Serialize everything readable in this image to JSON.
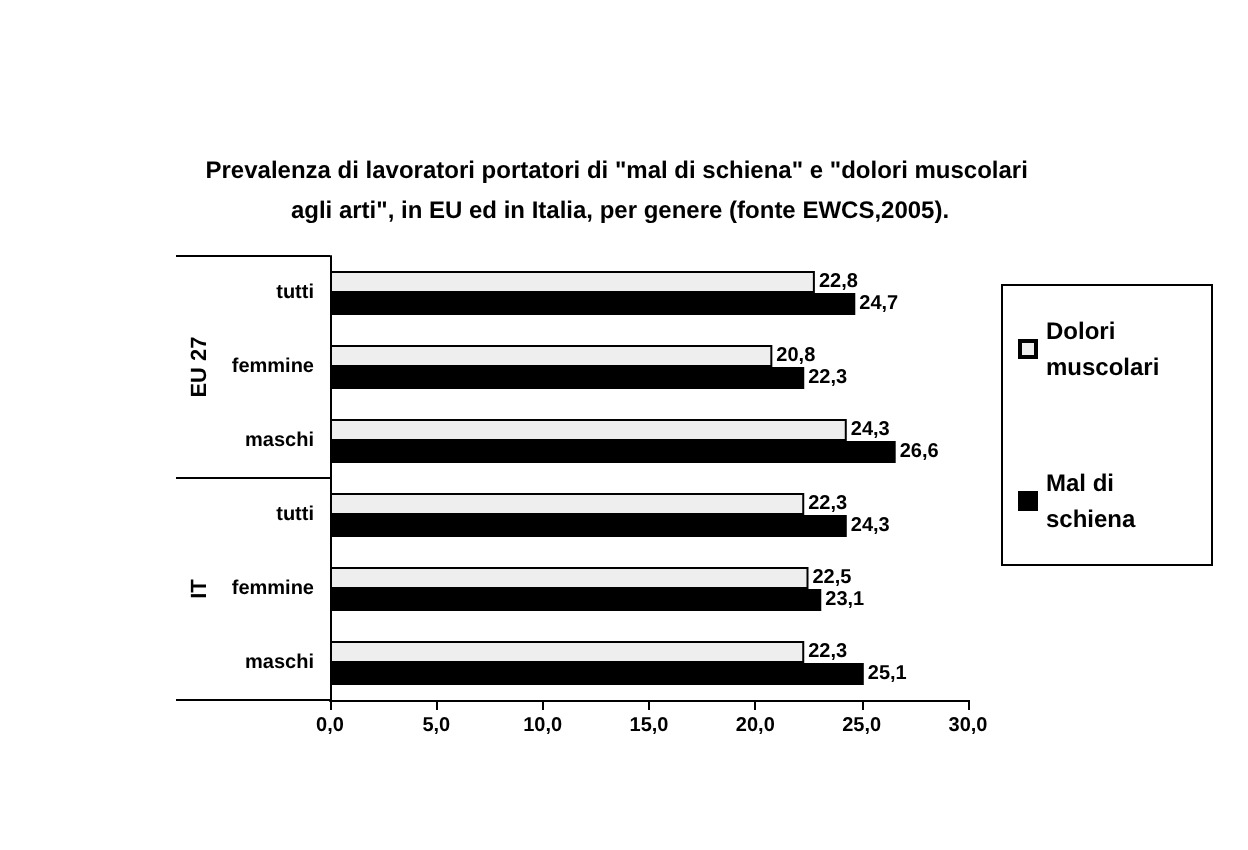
{
  "chart_data": {
    "type": "bar",
    "orientation": "horizontal",
    "title": "Prevalenza di lavoratori portatori di \"mal di schiena\" e \"dolori muscolari agli arti\", in EU ed in Italia, per genere (fonte EWCS,2005).",
    "categories": [
      "tutti",
      "femmine",
      "maschi",
      "tutti",
      "femmine",
      "maschi"
    ],
    "annotations": [
      "EU 27",
      "IT"
    ],
    "series": [
      {
        "name": "Dolori muscolari",
        "color": "#eeeeee",
        "values": [
          22.8,
          20.8,
          24.3,
          22.3,
          22.5,
          22.3
        ],
        "value_labels": [
          "22,8",
          "20,8",
          "24,3",
          "22,3",
          "22,5",
          "22,3"
        ]
      },
      {
        "name": "Mal di schiena",
        "color": "#000000",
        "values": [
          24.7,
          22.3,
          26.6,
          24.3,
          23.1,
          25.1
        ],
        "value_labels": [
          "24,7",
          "22,3",
          "26,6",
          "24,3",
          "23,1",
          "25,1"
        ]
      }
    ],
    "xlim": [
      0,
      30
    ],
    "xticks": [
      {
        "value": 0,
        "label": "0,0"
      },
      {
        "value": 5,
        "label": "5,0"
      },
      {
        "value": 10,
        "label": "10,0"
      },
      {
        "value": 15,
        "label": "15,0"
      },
      {
        "value": 20,
        "label": "20,0"
      },
      {
        "value": 25,
        "label": "25,0"
      },
      {
        "value": 30,
        "label": "30,0"
      }
    ],
    "grid": false,
    "legend": "right"
  }
}
